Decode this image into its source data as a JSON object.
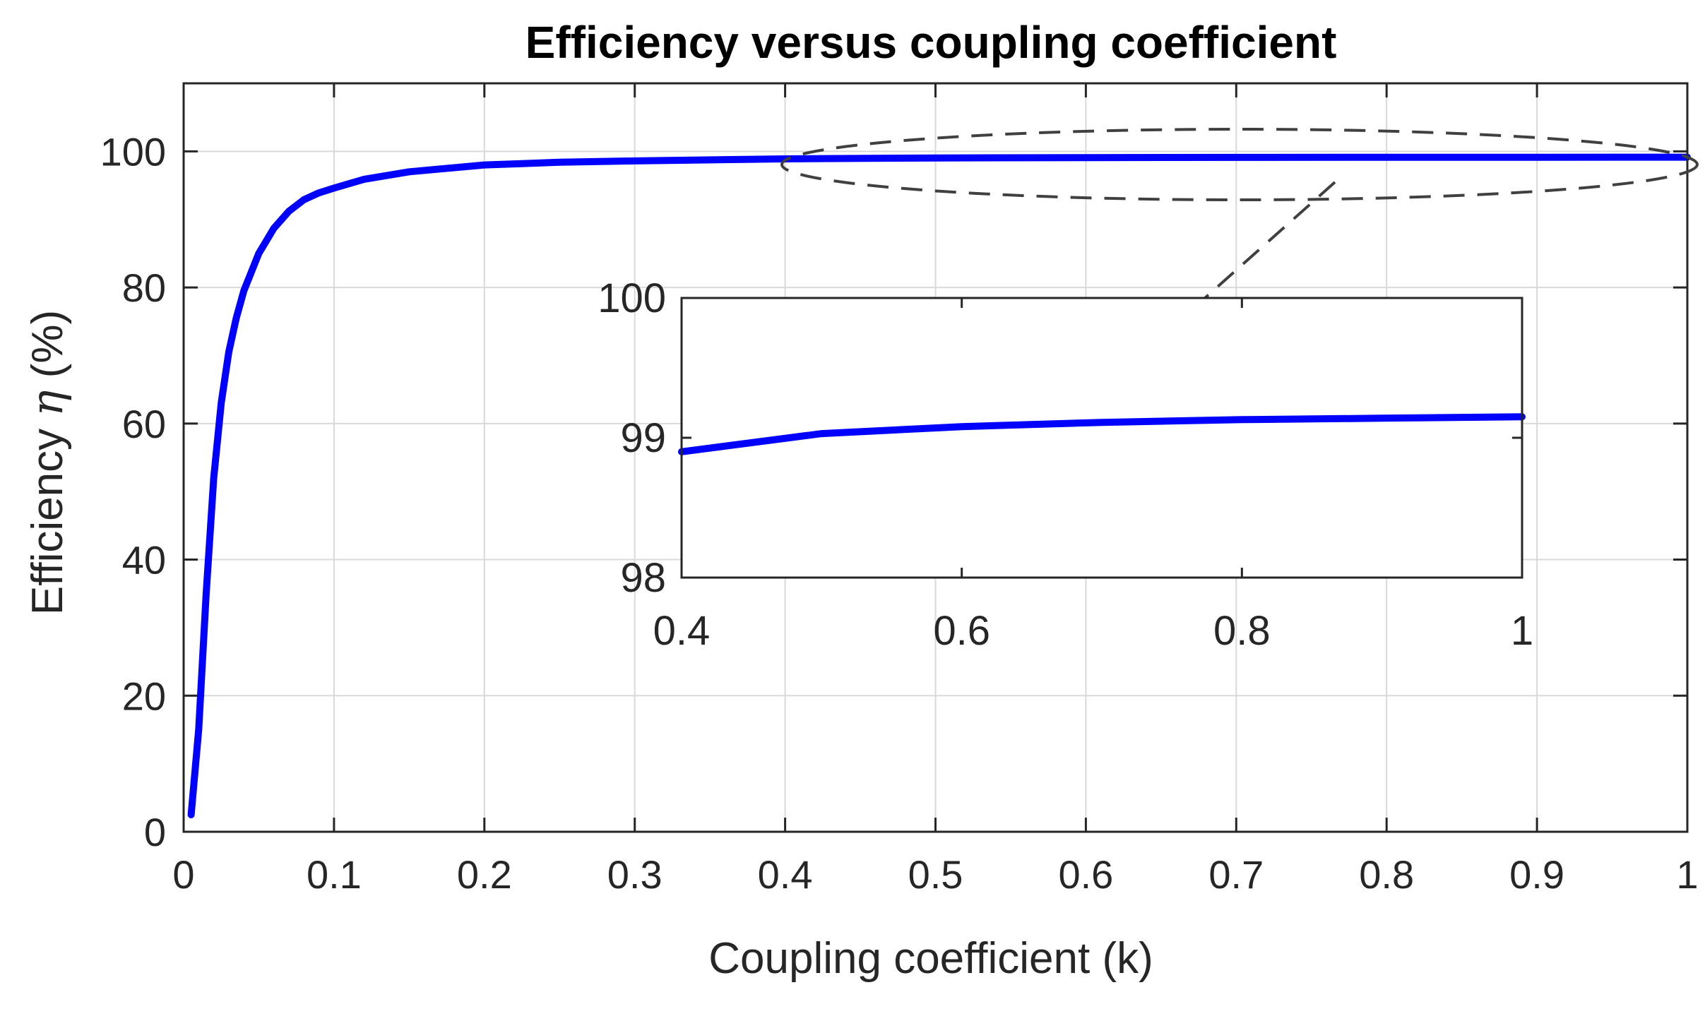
{
  "chart_data": {
    "type": "line",
    "title": "Efficiency versus coupling coefficient",
    "xlabel": "Coupling coefficient (k)",
    "ylabel_prefix": "Efficiency ",
    "ylabel_symbol": "η",
    "ylabel_suffix": " (%)",
    "xlim": [
      0,
      1
    ],
    "ylim": [
      0,
      100
    ],
    "x_ticks": [
      "0",
      "0.1",
      "0.2",
      "0.3",
      "0.4",
      "0.5",
      "0.6",
      "0.7",
      "0.8",
      "0.9",
      "1"
    ],
    "y_ticks": [
      "0",
      "20",
      "40",
      "60",
      "80",
      "100"
    ],
    "grid": true,
    "series": [
      {
        "color": "#0000ff",
        "x": [
          0.005,
          0.01,
          0.015,
          0.02,
          0.025,
          0.03,
          0.035,
          0.04,
          0.05,
          0.06,
          0.07,
          0.08,
          0.09,
          0.1,
          0.12,
          0.15,
          0.2,
          0.25,
          0.3,
          0.4,
          0.5,
          0.6,
          0.7,
          0.8,
          0.9,
          1.0
        ],
        "y": [
          2.5,
          15.0,
          35.0,
          52.0,
          63.0,
          70.5,
          75.5,
          79.5,
          85.0,
          88.7,
          91.2,
          92.9,
          93.9,
          94.6,
          95.9,
          97.0,
          98.0,
          98.4,
          98.6,
          98.9,
          99.03,
          99.08,
          99.11,
          99.13,
          99.14,
          99.15
        ]
      }
    ],
    "inset": {
      "xlim": [
        0.4,
        1
      ],
      "ylim": [
        98,
        100
      ],
      "x_ticks": [
        "0.4",
        "0.6",
        "0.8",
        "1"
      ],
      "y_ticks": [
        "98",
        "99",
        "100"
      ]
    }
  }
}
